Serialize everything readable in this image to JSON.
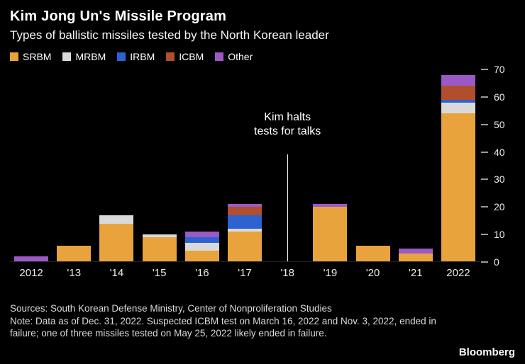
{
  "title": "Kim Jong Un's Missile Program",
  "subtitle": "Types of ballistic missiles tested by the North Korean leader",
  "chart_data": {
    "type": "bar",
    "stacked": true,
    "title": "Kim Jong Un's Missile Program",
    "subtitle": "Types of ballistic missiles tested by the North Korean leader",
    "categories": [
      "2012",
      "'13",
      "'14",
      "'15",
      "'16",
      "'17",
      "'18",
      "'19",
      "'20",
      "'21",
      "2022"
    ],
    "series": [
      {
        "name": "SRBM",
        "color": "#E8A33D",
        "values": [
          0,
          6,
          14,
          9,
          4,
          11,
          0,
          20,
          6,
          3,
          54
        ]
      },
      {
        "name": "MRBM",
        "color": "#D9D9D9",
        "values": [
          0,
          0,
          3,
          1,
          3,
          1,
          0,
          0,
          0,
          0,
          4
        ]
      },
      {
        "name": "IRBM",
        "color": "#2E62D1",
        "values": [
          0,
          0,
          0,
          0,
          2,
          5,
          0,
          0,
          0,
          0,
          1
        ]
      },
      {
        "name": "ICBM",
        "color": "#B04E2D",
        "values": [
          0,
          0,
          0,
          0,
          0,
          3,
          0,
          0,
          0,
          0,
          5
        ]
      },
      {
        "name": "Other",
        "color": "#9B59C6",
        "values": [
          2,
          0,
          0,
          0,
          2,
          1,
          0,
          1,
          0,
          2,
          4
        ]
      }
    ],
    "ylim": [
      0,
      70
    ],
    "yticks": [
      0,
      10,
      20,
      30,
      40,
      50,
      60,
      70
    ],
    "grid": false,
    "legend_position": "top-left",
    "annotation": {
      "line1": "Kim halts",
      "line2": "tests for talks",
      "category": "'18"
    }
  },
  "footer": {
    "sources": "Sources: South Korean Defense Ministry, Center of Nonproliferation Studies",
    "note": "Note: Data as of Dec. 31, 2022. Suspected ICBM test on March 16, 2022 and Nov. 3, 2022, ended in failure; one of three missiles tested on May 25, 2022 likely ended in failure.",
    "brand": "Bloomberg"
  }
}
